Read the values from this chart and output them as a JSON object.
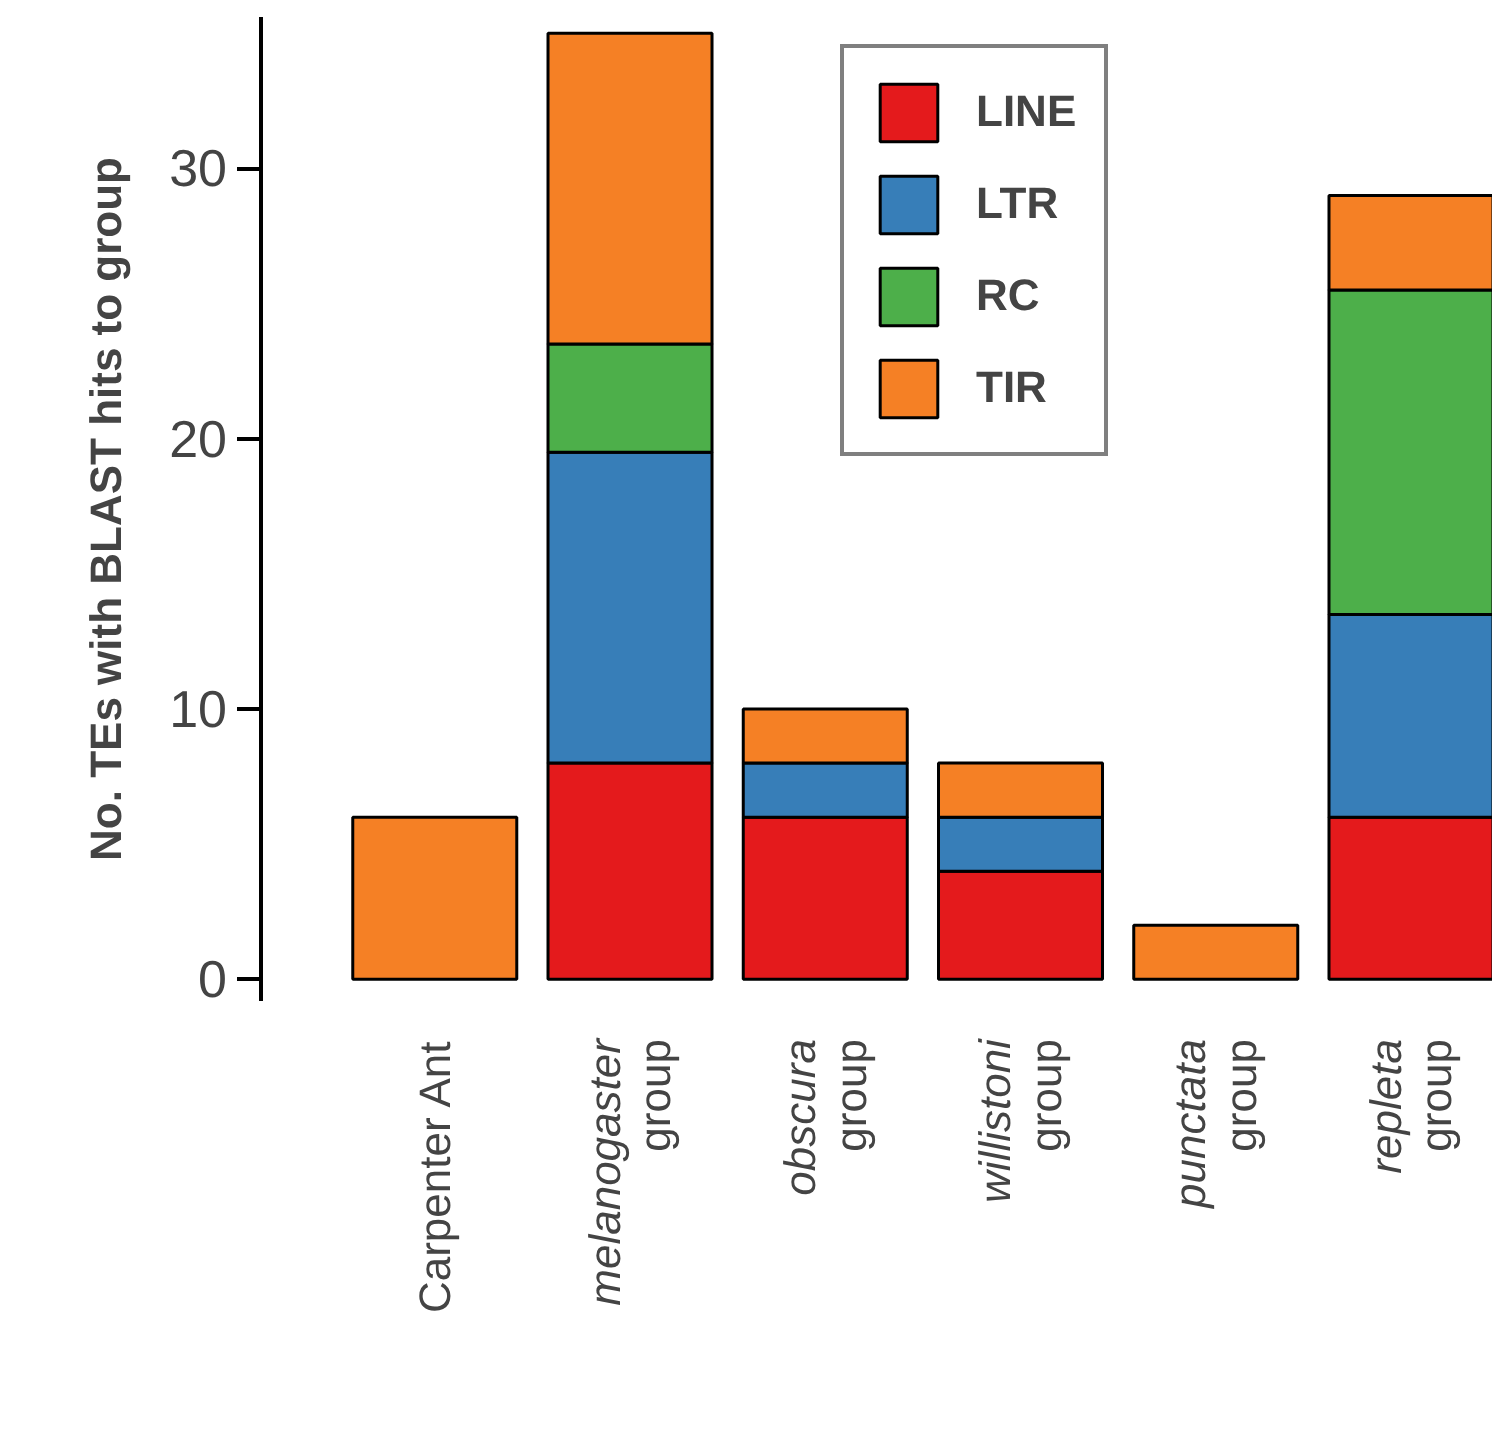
{
  "chart_data": {
    "type": "bar",
    "stacked": true,
    "ylabel": "No. TEs with BLAST hits to group",
    "categories": [
      "Carpenter Ant",
      "melanogaster\ngroup",
      "obscura\ngroup",
      "willistoni\ngroup",
      "punctata\ngroup",
      "repleta\ngroup"
    ],
    "series": [
      {
        "name": "LINE",
        "color": "#e41a1c",
        "values": [
          null,
          8,
          6,
          4,
          null,
          6
        ]
      },
      {
        "name": "LTR",
        "color": "#377eb8",
        "values": [
          null,
          11.5,
          2,
          2,
          null,
          7.5
        ]
      },
      {
        "name": "RC",
        "color": "#4daf4a",
        "values": [
          null,
          4,
          null,
          null,
          null,
          12
        ]
      },
      {
        "name": "TIR",
        "color": "#f58025",
        "values": [
          6,
          11.5,
          2,
          2,
          2,
          3.5
        ]
      }
    ],
    "ylim": [
      -0.8,
      35.6
    ],
    "yticks": [
      0,
      10,
      20,
      30
    ],
    "grid": false,
    "legend": "top right"
  }
}
